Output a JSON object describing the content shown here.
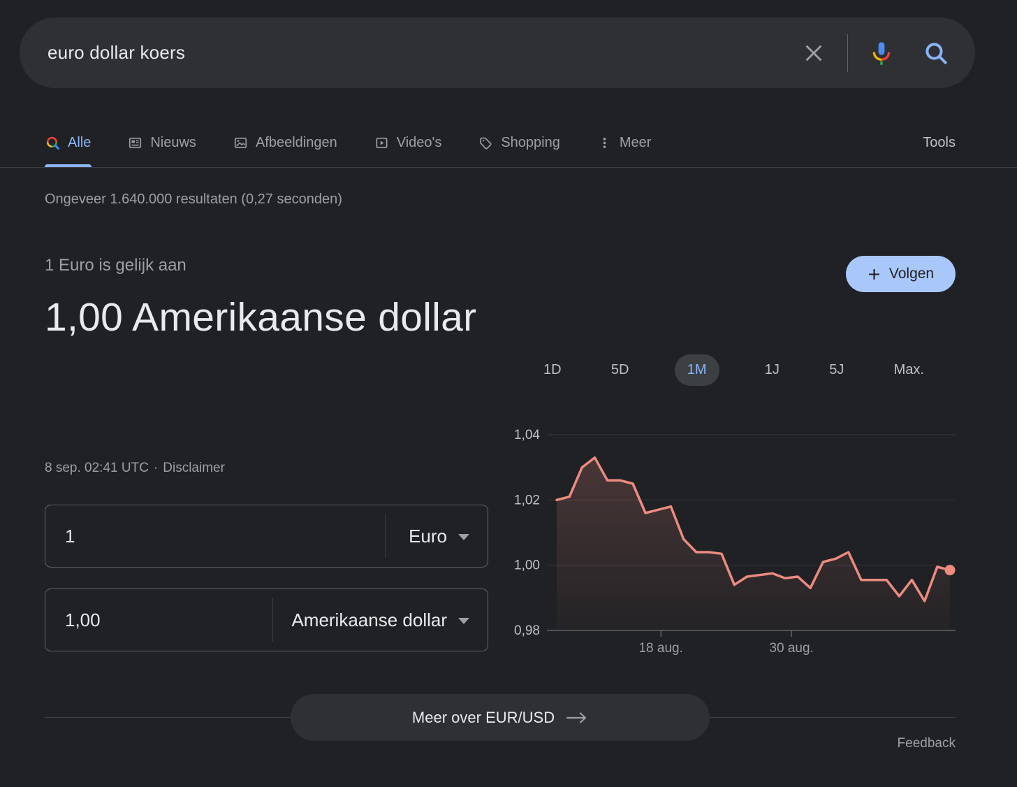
{
  "search": {
    "query": "euro dollar koers",
    "icons": {
      "clear": "x-icon",
      "mic": "google-mic-icon",
      "submit": "magnifier-icon"
    }
  },
  "tabs": {
    "items": [
      {
        "label": "Alle",
        "icon": "search-icon",
        "active": true
      },
      {
        "label": "Nieuws",
        "icon": "news-icon",
        "active": false
      },
      {
        "label": "Afbeeldingen",
        "icon": "images-icon",
        "active": false
      },
      {
        "label": "Video's",
        "icon": "videos-icon",
        "active": false
      },
      {
        "label": "Shopping",
        "icon": "shopping-tag-icon",
        "active": false
      },
      {
        "label": "Meer",
        "icon": "more-dots-icon",
        "active": false
      }
    ],
    "tools_label": "Tools"
  },
  "stats": {
    "text": "Ongeveer 1.640.000 resultaten (0,27 seconden)"
  },
  "converter": {
    "equals_label": "1 Euro is gelijk aan",
    "result": "1,00 Amerikaanse dollar",
    "timestamp": "8 sep. 02:41 UTC",
    "separator": "·",
    "disclaimer_label": "Disclaimer",
    "from": {
      "value": "1",
      "currency": "Euro"
    },
    "to": {
      "value": "1,00",
      "currency": "Amerikaanse dollar"
    },
    "follow_label": "Volgen",
    "more_label": "Meer over EUR/USD"
  },
  "ranges": [
    {
      "label": "1D",
      "active": false
    },
    {
      "label": "5D",
      "active": false
    },
    {
      "label": "1M",
      "active": true
    },
    {
      "label": "1J",
      "active": false
    },
    {
      "label": "5J",
      "active": false
    },
    {
      "label": "Max.",
      "active": false
    }
  ],
  "chart_data": {
    "type": "area",
    "series_name": "EUR/USD",
    "period": "1M",
    "ylim": [
      0.98,
      1.04
    ],
    "y_ticks": [
      "1,04",
      "1,02",
      "1,00",
      "0,98"
    ],
    "x_ticks": [
      {
        "label": "18 aug.",
        "position": 0.265
      },
      {
        "label": "30 aug.",
        "position": 0.597
      }
    ],
    "values": [
      1.02,
      1.021,
      1.03,
      1.033,
      1.026,
      1.026,
      1.025,
      1.016,
      1.017,
      1.018,
      1.008,
      1.004,
      1.004,
      1.0035,
      0.994,
      0.9965,
      0.997,
      0.9975,
      0.996,
      0.9965,
      0.993,
      1.001,
      1.002,
      1.004,
      0.9955,
      0.9955,
      0.9955,
      0.9905,
      0.9955,
      0.989,
      0.9995,
      0.9985
    ],
    "line_color": "#ec8b80",
    "grid": true,
    "end_dot": true
  },
  "footer": {
    "feedback_label": "Feedback"
  },
  "colors": {
    "background": "#202124",
    "surface": "#2f3034",
    "text_primary": "#e8eaed",
    "text_secondary": "#9aa0a6",
    "accent_blue": "#8ab4f8",
    "follow_bg": "#a9c7fa",
    "chart_line": "#ec8b80",
    "border": "#5f6368"
  }
}
